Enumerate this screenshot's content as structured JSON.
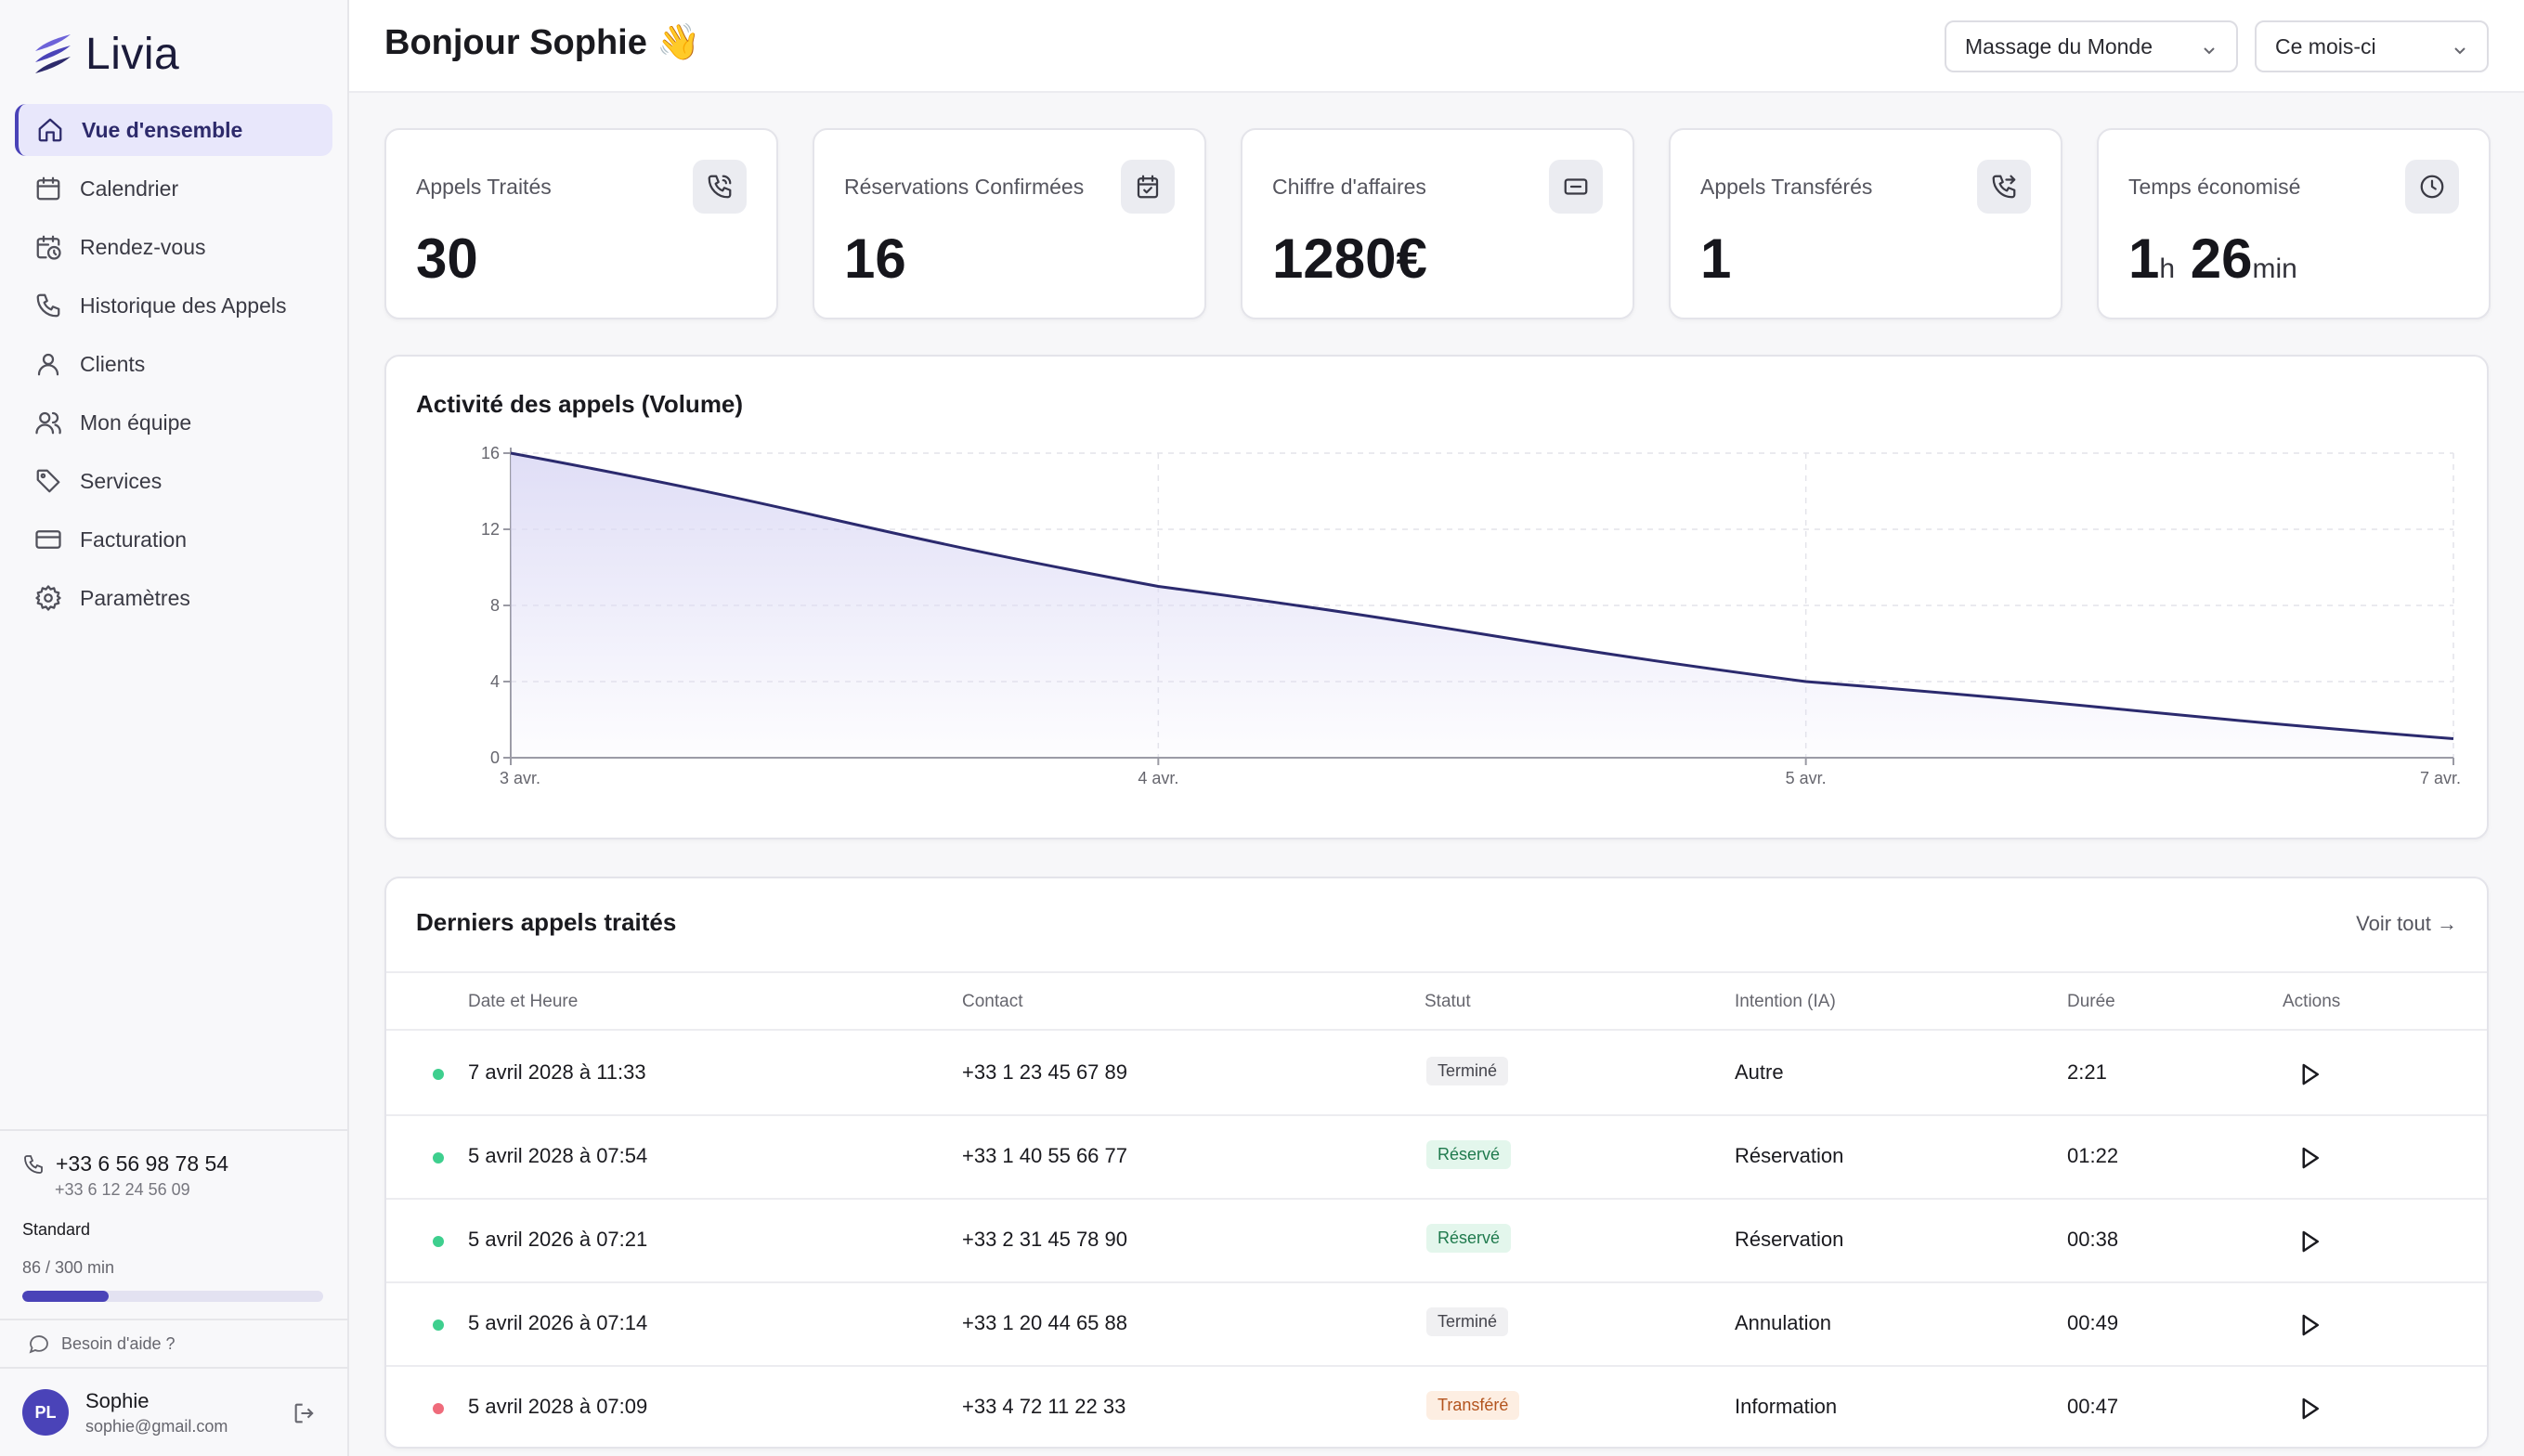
{
  "app": {
    "name": "Livia"
  },
  "nav": [
    {
      "label": "Vue d'ensemble",
      "icon": "home-icon",
      "active": true
    },
    {
      "label": "Calendrier",
      "icon": "calendar-icon"
    },
    {
      "label": "Rendez-vous",
      "icon": "calendar-clock-icon"
    },
    {
      "label": "Historique des Appels",
      "icon": "phone-icon"
    },
    {
      "label": "Clients",
      "icon": "user-icon"
    },
    {
      "label": "Mon équipe",
      "icon": "users-icon"
    },
    {
      "label": "Services",
      "icon": "tag-icon"
    },
    {
      "label": "Facturation",
      "icon": "credit-card-icon"
    },
    {
      "label": "Paramètres",
      "icon": "gear-icon"
    }
  ],
  "sidebar_bottom": {
    "phone_main": "+33 6 56 98 78 54",
    "phone_sub": "+33 6 12 24 56 09",
    "plan": "Standard",
    "minutes": "86 / 300 min",
    "usage_fraction": 0.287,
    "help": "Besoin d'aide ?",
    "user": {
      "initials": "PL",
      "name": "Sophie",
      "email": "sophie@gmail.com"
    }
  },
  "header": {
    "greeting": "Bonjour Sophie 👋",
    "business_select": "Massage du Monde",
    "period_select": "Ce mois-ci"
  },
  "stats": [
    {
      "title": "Appels Traités",
      "value": "30",
      "icon": "phone-incoming-icon"
    },
    {
      "title": "Réservations Confirmées",
      "value": "16",
      "icon": "calendar-check-icon"
    },
    {
      "title": "Chiffre d'affaires",
      "value": "1280€",
      "icon": "banknote-icon"
    },
    {
      "title": "Appels Transférés",
      "value": "1",
      "icon": "phone-forward-icon"
    },
    {
      "title": "Temps économisé",
      "value_h": "1",
      "unit_h": "h",
      "value_m": "26",
      "unit_m": "min",
      "icon": "clock-icon"
    }
  ],
  "chart_data": {
    "type": "area",
    "title": "Activité des appels (Volume)",
    "x": [
      "3 avr.",
      "4 avr.",
      "5 avr.",
      "7 avr."
    ],
    "series": [
      {
        "values": [
          16,
          9,
          4,
          1
        ]
      }
    ],
    "yticks": [
      0,
      4,
      8,
      12,
      16
    ],
    "ylim": [
      0,
      16
    ],
    "grid": true,
    "colors": {
      "line": "#2b2a6e",
      "fill": "#dcdaf5"
    }
  },
  "table": {
    "title": "Derniers appels traités",
    "see_all": "Voir tout →",
    "columns": [
      "Date et Heure",
      "Contact",
      "Statut",
      "Intention (IA)",
      "Durée",
      "Actions"
    ],
    "rows": [
      {
        "date": "7 avril 2028 à 11:33",
        "contact": "+33 1 23 45 67 89",
        "status": "Terminé",
        "intent": "Autre",
        "duration": "2:21",
        "dot": "#3ecf8e"
      },
      {
        "date": "5 avril 2028 à 07:54",
        "contact": "+33 1 40 55 66 77",
        "status": "Réservé",
        "intent": "Réservation",
        "duration": "01:22",
        "dot": "#3ecf8e"
      },
      {
        "date": "5 avril 2026 à 07:21",
        "contact": "+33 2 31 45 78 90",
        "status": "Réservé",
        "intent": "Réservation",
        "duration": "00:38",
        "dot": "#3ecf8e"
      },
      {
        "date": "5 avril 2026 à 07:14",
        "contact": "+33 1 20 44 65 88",
        "status": "Terminé",
        "intent": "Annulation",
        "duration": "00:49",
        "dot": "#3ecf8e"
      },
      {
        "date": "5 avril 2028 à 07:09",
        "contact": "+33 4 72 11 22 33",
        "status": "Transféré",
        "intent": "Information",
        "duration": "00:47",
        "dot": "#ef6b7b"
      }
    ],
    "badge_colors": {
      "Terminé": {
        "bg": "#f0f0f2",
        "fg": "#44444c"
      },
      "Réservé": {
        "bg": "#e3f6ec",
        "fg": "#1f7a4d"
      },
      "Transféré": {
        "bg": "#fdeee2",
        "fg": "#b3541e"
      }
    }
  }
}
